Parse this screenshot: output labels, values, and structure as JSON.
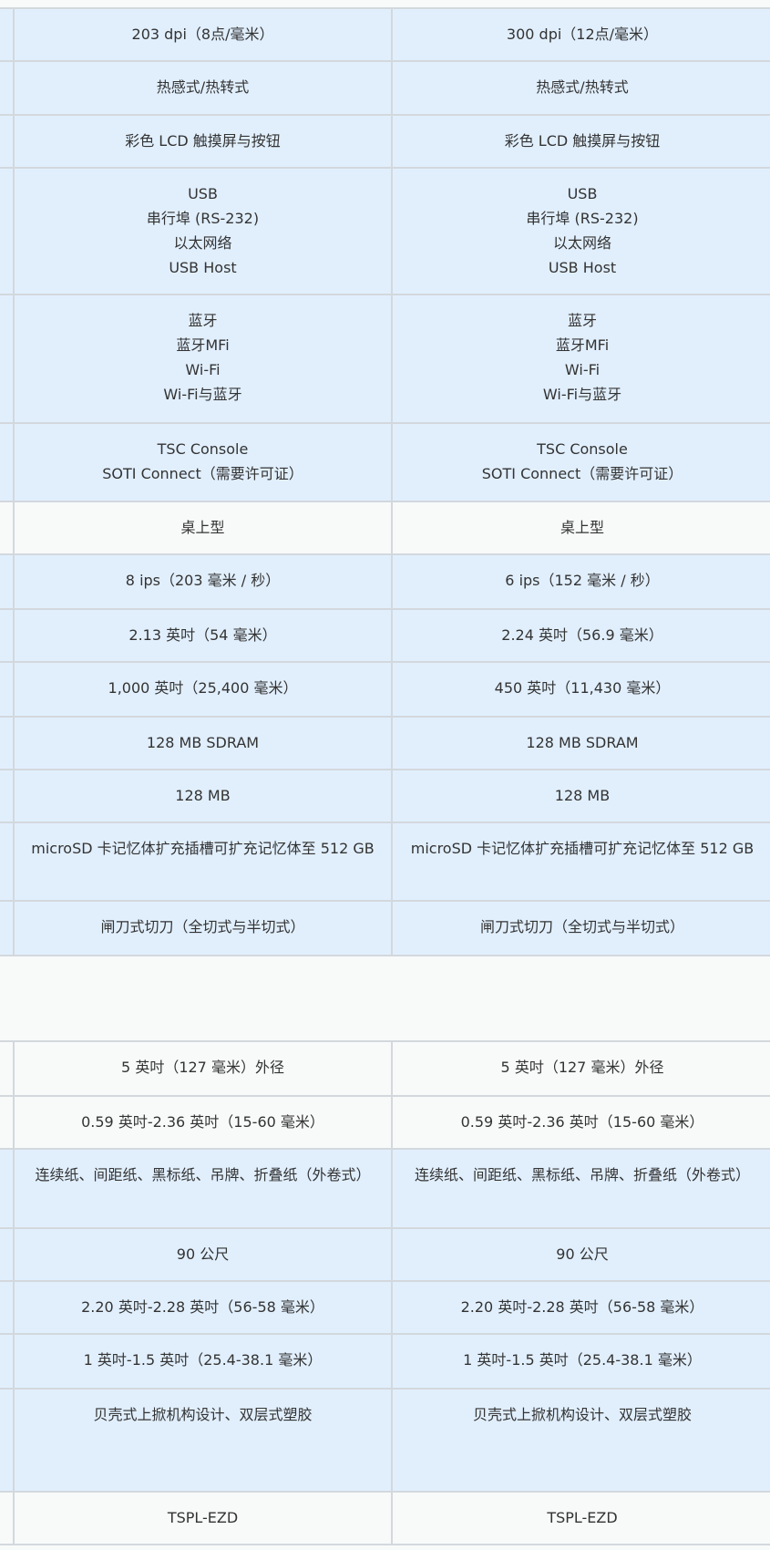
{
  "table1": {
    "rows": [
      {
        "shade": "blue",
        "cells": [
          [
            "203 dpi（8点/毫米）"
          ],
          [
            "300 dpi（12点/毫米）"
          ]
        ]
      },
      {
        "shade": "blue",
        "cells": [
          [
            "热感式/热转式"
          ],
          [
            "热感式/热转式"
          ]
        ]
      },
      {
        "shade": "blue",
        "cells": [
          [
            "彩色 LCD 触摸屏与按钮"
          ],
          [
            "彩色 LCD 触摸屏与按钮"
          ]
        ]
      },
      {
        "shade": "blue",
        "cells": [
          [
            "USB",
            "串行埠 (RS-232)",
            "以太网络",
            "USB Host"
          ],
          [
            "USB",
            "串行埠 (RS-232)",
            "以太网络",
            "USB Host"
          ]
        ]
      },
      {
        "shade": "blue",
        "cells": [
          [
            "蓝牙",
            "蓝牙MFi",
            "Wi-Fi",
            "Wi-Fi与蓝牙"
          ],
          [
            "蓝牙",
            "蓝牙MFi",
            "Wi-Fi",
            "Wi-Fi与蓝牙"
          ]
        ]
      },
      {
        "shade": "blue",
        "cells": [
          [
            "TSC Console",
            "SOTI Connect（需要许可证）"
          ],
          [
            "TSC Console",
            "SOTI Connect（需要许可证）"
          ]
        ]
      },
      {
        "shade": "white",
        "cells": [
          [
            "桌上型"
          ],
          [
            "桌上型"
          ]
        ]
      },
      {
        "shade": "blue",
        "cells": [
          [
            "8 ips（203 毫米 / 秒）"
          ],
          [
            "6 ips（152 毫米 / 秒）"
          ]
        ]
      },
      {
        "shade": "blue",
        "cells": [
          [
            "2.13 英吋（54 毫米）"
          ],
          [
            "2.24 英吋（56.9 毫米）"
          ]
        ]
      },
      {
        "shade": "blue",
        "cells": [
          [
            "1,000 英吋（25,400 毫米）"
          ],
          [
            "450 英吋（11,430 毫米）"
          ]
        ]
      },
      {
        "shade": "blue",
        "cells": [
          [
            "128 MB SDRAM"
          ],
          [
            "128 MB SDRAM"
          ]
        ]
      },
      {
        "shade": "blue",
        "cells": [
          [
            "128 MB"
          ],
          [
            "128 MB"
          ]
        ]
      },
      {
        "shade": "blue",
        "cells": [
          [
            "microSD 卡记忆体扩充插槽可扩充记忆体至 512 GB"
          ],
          [
            "microSD 卡记忆体扩充插槽可扩充记忆体至 512 GB"
          ]
        ]
      },
      {
        "shade": "blue",
        "cells": [
          [
            "闸刀式切刀（全切式与半切式）"
          ],
          [
            "闸刀式切刀（全切式与半切式）"
          ]
        ]
      }
    ]
  },
  "table2": {
    "rows": [
      {
        "shade": "white",
        "cells": [
          [
            "5 英吋（127 毫米）外径"
          ],
          [
            "5 英吋（127 毫米）外径"
          ]
        ]
      },
      {
        "shade": "white",
        "cells": [
          [
            "0.59 英吋-2.36 英吋（15-60 毫米）"
          ],
          [
            "0.59 英吋-2.36 英吋（15-60 毫米）"
          ]
        ]
      },
      {
        "shade": "blue",
        "cells": [
          [
            "连续纸、间距纸、黑标纸、吊牌、折叠纸（外卷式）"
          ],
          [
            "连续纸、间距纸、黑标纸、吊牌、折叠纸（外卷式）"
          ]
        ]
      },
      {
        "shade": "blue",
        "cells": [
          [
            "90 公尺"
          ],
          [
            "90 公尺"
          ]
        ]
      },
      {
        "shade": "blue",
        "cells": [
          [
            "2.20 英吋-2.28 英吋（56-58 毫米）"
          ],
          [
            "2.20 英吋-2.28 英吋（56-58 毫米）"
          ]
        ]
      },
      {
        "shade": "blue",
        "cells": [
          [
            "1 英吋-1.5 英吋（25.4-38.1 毫米）"
          ],
          [
            "1 英吋-1.5 英吋（25.4-38.1 毫米）"
          ]
        ]
      },
      {
        "shade": "blue",
        "cells": [
          [
            "贝壳式上掀机构设计、双层式塑胶"
          ],
          [
            "贝壳式上掀机构设计、双层式塑胶"
          ]
        ]
      },
      {
        "shade": "white",
        "cells": [
          [
            "TSPL-EZD"
          ],
          [
            "TSPL-EZD"
          ]
        ]
      }
    ]
  },
  "colors": {
    "row_blue": "#e1effd",
    "row_white": "#f8fafa",
    "border": "#d3d8dd",
    "text": "#333333"
  }
}
